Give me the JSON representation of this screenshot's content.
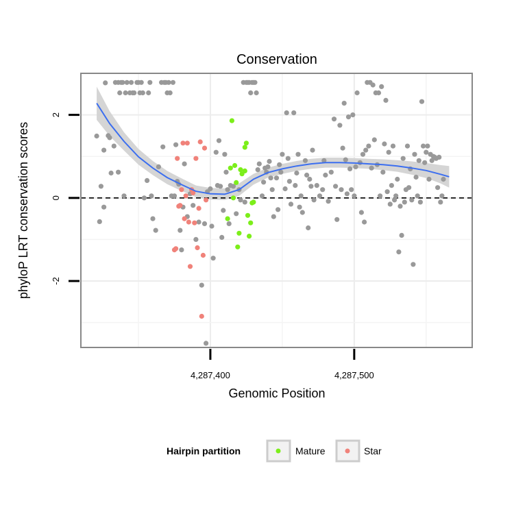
{
  "chart_data": {
    "type": "scatter",
    "title": "Conservation",
    "xlabel": "Genomic Position",
    "ylabel": "phyloP LRT conservation scores",
    "xlim": [
      4287310,
      4287582
    ],
    "ylim": [
      -3.6,
      3.0
    ],
    "x_ticks": [
      {
        "value": 4287400,
        "label": "4,287,400"
      },
      {
        "value": 4287500,
        "label": "4,287,500"
      }
    ],
    "y_ticks": [
      {
        "value": -2,
        "label": "-2"
      },
      {
        "value": 0,
        "label": "0"
      },
      {
        "value": 2,
        "label": "2"
      }
    ],
    "grid": true,
    "reference_line": {
      "y": 0,
      "style": "dashed"
    },
    "legend": {
      "title": "Hairpin partition",
      "position": "bottom",
      "entries": [
        {
          "label": "Mature",
          "color": "#7cee1a"
        },
        {
          "label": "Star",
          "color": "#f0827a"
        }
      ]
    },
    "colors": {
      "other": "#999999",
      "Mature": "#7cee1a",
      "Star": "#f0827a",
      "smooth": "#3b6ef0",
      "band": "#d3d3d3"
    },
    "smooth": {
      "x": [
        4287321,
        4287330,
        4287340,
        4287350,
        4287360,
        4287370,
        4287380,
        4287390,
        4287400,
        4287410,
        4287420,
        4287430,
        4287440,
        4287450,
        4287460,
        4287470,
        4287480,
        4287490,
        4287500,
        4287510,
        4287520,
        4287530,
        4287540,
        4287550,
        4287560,
        4287566
      ],
      "y": [
        2.28,
        1.79,
        1.36,
        0.99,
        0.72,
        0.49,
        0.32,
        0.16,
        0.1,
        0.09,
        0.2,
        0.45,
        0.61,
        0.7,
        0.77,
        0.82,
        0.85,
        0.85,
        0.84,
        0.82,
        0.8,
        0.77,
        0.72,
        0.66,
        0.57,
        0.51
      ],
      "se": [
        0.4,
        0.3,
        0.22,
        0.19,
        0.17,
        0.16,
        0.15,
        0.14,
        0.14,
        0.14,
        0.15,
        0.13,
        0.12,
        0.12,
        0.12,
        0.12,
        0.12,
        0.12,
        0.12,
        0.12,
        0.13,
        0.14,
        0.16,
        0.18,
        0.22,
        0.26
      ]
    },
    "series": [
      {
        "name": "",
        "group": "other",
        "points": [
          [
            4287321,
            1.49
          ],
          [
            4287323,
            -0.57
          ],
          [
            4287324,
            0.28
          ],
          [
            4287326,
            1.15
          ],
          [
            4287326,
            -0.22
          ],
          [
            4287327,
            2.77
          ],
          [
            4287329,
            1.5
          ],
          [
            4287330,
            1.45
          ],
          [
            4287331,
            0.6
          ],
          [
            4287333,
            1.25
          ],
          [
            4287334,
            2.78
          ],
          [
            4287336,
            2.78
          ],
          [
            4287336,
            0.62
          ],
          [
            4287337,
            2.53
          ],
          [
            4287338,
            2.78
          ],
          [
            4287339,
            2.78
          ],
          [
            4287340,
            0.05
          ],
          [
            4287341,
            2.53
          ],
          [
            4287342,
            2.78
          ],
          [
            4287344,
            2.53
          ],
          [
            4287345,
            2.78
          ],
          [
            4287346,
            2.53
          ],
          [
            4287347,
            2.53
          ],
          [
            4287349,
            2.78
          ],
          [
            4287350,
            2.78
          ],
          [
            4287351,
            2.53
          ],
          [
            4287352,
            2.78
          ],
          [
            4287353,
            2.53
          ],
          [
            4287354,
            0.0
          ],
          [
            4287356,
            0.42
          ],
          [
            4287357,
            2.53
          ],
          [
            4287358,
            2.78
          ],
          [
            4287359,
            0.05
          ],
          [
            4287360,
            -0.5
          ],
          [
            4287362,
            -0.78
          ],
          [
            4287364,
            0.75
          ],
          [
            4287366,
            2.78
          ],
          [
            4287367,
            1.23
          ],
          [
            4287368,
            2.78
          ],
          [
            4287369,
            2.78
          ],
          [
            4287370,
            2.53
          ],
          [
            4287371,
            2.78
          ],
          [
            4287372,
            2.53
          ],
          [
            4287373,
            0.05
          ],
          [
            4287374,
            2.78
          ],
          [
            4287375,
            0.05
          ],
          [
            4287376,
            1.28
          ],
          [
            4287377,
            0.4
          ],
          [
            4287378,
            0.33
          ],
          [
            4287379,
            -0.78
          ],
          [
            4287380,
            -1.25
          ],
          [
            4287381,
            -0.22
          ],
          [
            4287382,
            0.82
          ],
          [
            4287384,
            -0.45
          ],
          [
            4287386,
            0.1
          ],
          [
            4287388,
            -0.18
          ],
          [
            4287390,
            -1.0
          ],
          [
            4287392,
            -0.58
          ],
          [
            4287394,
            -2.1
          ],
          [
            4287396,
            -0.62
          ],
          [
            4287397,
            -3.5
          ],
          [
            4287398,
            0.15
          ],
          [
            4287400,
            0.22
          ],
          [
            4287401,
            -0.68
          ],
          [
            4287402,
            -1.45
          ],
          [
            4287404,
            1.1
          ],
          [
            4287405,
            0.3
          ],
          [
            4287406,
            1.38
          ],
          [
            4287407,
            0.28
          ],
          [
            4287408,
            -0.95
          ],
          [
            4287409,
            -0.3
          ],
          [
            4287410,
            1.05
          ],
          [
            4287411,
            0.62
          ],
          [
            4287412,
            0.2
          ],
          [
            4287413,
            -0.62
          ],
          [
            4287414,
            0.3
          ],
          [
            4287416,
            0.28
          ],
          [
            4287418,
            -0.38
          ],
          [
            4287420,
            0.2
          ],
          [
            4287421,
            -0.05
          ],
          [
            4287423,
            2.78
          ],
          [
            4287424,
            -0.1
          ],
          [
            4287425,
            2.78
          ],
          [
            4287426,
            2.78
          ],
          [
            4287427,
            2.78
          ],
          [
            4287428,
            2.53
          ],
          [
            4287429,
            2.78
          ],
          [
            4287430,
            2.78
          ],
          [
            4287431,
            2.78
          ],
          [
            4287432,
            2.53
          ],
          [
            4287433,
            0.68
          ],
          [
            4287434,
            0.82
          ],
          [
            4287436,
            0.05
          ],
          [
            4287437,
            0.38
          ],
          [
            4287438,
            0.72
          ],
          [
            4287439,
            0.62
          ],
          [
            4287440,
            0.75
          ],
          [
            4287441,
            0.88
          ],
          [
            4287442,
            0.48
          ],
          [
            4287443,
            0.2
          ],
          [
            4287444,
            -0.45
          ],
          [
            4287446,
            0.48
          ],
          [
            4287447,
            -0.28
          ],
          [
            4287448,
            0.8
          ],
          [
            4287449,
            0.62
          ],
          [
            4287450,
            1.05
          ],
          [
            4287452,
            0.22
          ],
          [
            4287453,
            2.05
          ],
          [
            4287454,
            0.95
          ],
          [
            4287455,
            0.4
          ],
          [
            4287456,
            -0.15
          ],
          [
            4287458,
            2.05
          ],
          [
            4287459,
            0.3
          ],
          [
            4287460,
            0.6
          ],
          [
            4287461,
            1.05
          ],
          [
            4287462,
            -0.22
          ],
          [
            4287463,
            0.05
          ],
          [
            4287464,
            -0.35
          ],
          [
            4287466,
            0.9
          ],
          [
            4287467,
            0.55
          ],
          [
            4287468,
            -0.72
          ],
          [
            4287469,
            0.45
          ],
          [
            4287470,
            0.28
          ],
          [
            4287471,
            1.15
          ],
          [
            4287472,
            -0.05
          ],
          [
            4287474,
            0.3
          ],
          [
            4287476,
            0.05
          ],
          [
            4287478,
            0.2
          ],
          [
            4287479,
            0.9
          ],
          [
            4287480,
            0.55
          ],
          [
            4287482,
            -0.08
          ],
          [
            4287484,
            0.62
          ],
          [
            4287486,
            1.9
          ],
          [
            4287487,
            0.28
          ],
          [
            4287488,
            -0.52
          ],
          [
            4287490,
            1.75
          ],
          [
            4287491,
            0.2
          ],
          [
            4287492,
            1.2
          ],
          [
            4287493,
            2.28
          ],
          [
            4287494,
            0.92
          ],
          [
            4287495,
            0.1
          ],
          [
            4287496,
            1.95
          ],
          [
            4287497,
            0.7
          ],
          [
            4287498,
            0.2
          ],
          [
            4287499,
            2.0
          ],
          [
            4287500,
            0.05
          ],
          [
            4287501,
            0.75
          ],
          [
            4287502,
            2.53
          ],
          [
            4287504,
            0.85
          ],
          [
            4287505,
            -0.35
          ],
          [
            4287506,
            1.05
          ],
          [
            4287507,
            -0.58
          ],
          [
            4287508,
            1.15
          ],
          [
            4287509,
            2.78
          ],
          [
            4287510,
            1.25
          ],
          [
            4287511,
            2.78
          ],
          [
            4287512,
            0.72
          ],
          [
            4287513,
            2.72
          ],
          [
            4287514,
            1.4
          ],
          [
            4287515,
            2.53
          ],
          [
            4287516,
            0.8
          ],
          [
            4287517,
            2.53
          ],
          [
            4287518,
            0.05
          ],
          [
            4287519,
            2.68
          ],
          [
            4287520,
            0.62
          ],
          [
            4287521,
            1.3
          ],
          [
            4287522,
            2.35
          ],
          [
            4287523,
            0.15
          ],
          [
            4287524,
            1.1
          ],
          [
            4287525,
            -0.15
          ],
          [
            4287526,
            0.3
          ],
          [
            4287527,
            1.25
          ],
          [
            4287528,
            -0.05
          ],
          [
            4287529,
            0.05
          ],
          [
            4287530,
            0.45
          ],
          [
            4287531,
            -1.3
          ],
          [
            4287532,
            -0.2
          ],
          [
            4287533,
            -0.9
          ],
          [
            4287534,
            0.95
          ],
          [
            4287535,
            -0.1
          ],
          [
            4287536,
            0.2
          ],
          [
            4287537,
            1.25
          ],
          [
            4287538,
            0.25
          ],
          [
            4287539,
            0.7
          ],
          [
            4287540,
            -0.05
          ],
          [
            4287541,
            -1.6
          ],
          [
            4287542,
            1.05
          ],
          [
            4287543,
            0.5
          ],
          [
            4287544,
            0.05
          ],
          [
            4287545,
            0.9
          ],
          [
            4287546,
            -0.1
          ],
          [
            4287547,
            2.32
          ],
          [
            4287548,
            1.25
          ],
          [
            4287549,
            0.85
          ],
          [
            4287550,
            1.1
          ],
          [
            4287551,
            1.25
          ],
          [
            4287552,
            0.45
          ],
          [
            4287553,
            1.05
          ],
          [
            4287554,
            0.9
          ],
          [
            4287555,
            1.0
          ],
          [
            4287556,
            0.98
          ],
          [
            4287557,
            0.95
          ],
          [
            4287558,
            0.25
          ],
          [
            4287559,
            0.98
          ],
          [
            4287560,
            -0.1
          ],
          [
            4287561,
            0.05
          ],
          [
            4287562,
            0.45
          ]
        ]
      },
      {
        "name": "Mature",
        "group": "Mature",
        "points": [
          [
            4287412,
            -0.5
          ],
          [
            4287414,
            0.72
          ],
          [
            4287415,
            1.86
          ],
          [
            4287416,
            0.0
          ],
          [
            4287417,
            0.78
          ],
          [
            4287418,
            0.37
          ],
          [
            4287419,
            -1.18
          ],
          [
            4287420,
            -0.85
          ],
          [
            4287421,
            0.68
          ],
          [
            4287422,
            0.58
          ],
          [
            4287424,
            1.22
          ],
          [
            4287425,
            1.32
          ],
          [
            4287426,
            -0.42
          ],
          [
            4287427,
            -0.92
          ],
          [
            4287428,
            -0.6
          ],
          [
            4287429,
            -0.12
          ],
          [
            4287430,
            -0.1
          ],
          [
            4287424,
            0.65
          ]
        ]
      },
      {
        "name": "Star",
        "group": "Star",
        "points": [
          [
            4287376,
            -1.22
          ],
          [
            4287377,
            0.95
          ],
          [
            4287378,
            -0.2
          ],
          [
            4287379,
            -0.18
          ],
          [
            4287380,
            0.2
          ],
          [
            4287381,
            1.32
          ],
          [
            4287382,
            -0.5
          ],
          [
            4287383,
            0.05
          ],
          [
            4287384,
            1.32
          ],
          [
            4287385,
            -0.58
          ],
          [
            4287386,
            -1.65
          ],
          [
            4287387,
            0.2
          ],
          [
            4287388,
            0.12
          ],
          [
            4287389,
            -0.6
          ],
          [
            4287390,
            0.95
          ],
          [
            4287391,
            -1.2
          ],
          [
            4287392,
            -0.25
          ],
          [
            4287393,
            1.35
          ],
          [
            4287394,
            -2.85
          ],
          [
            4287395,
            -1.38
          ],
          [
            4287396,
            1.2
          ],
          [
            4287397,
            -0.05
          ],
          [
            4287375,
            -1.25
          ]
        ]
      }
    ]
  }
}
